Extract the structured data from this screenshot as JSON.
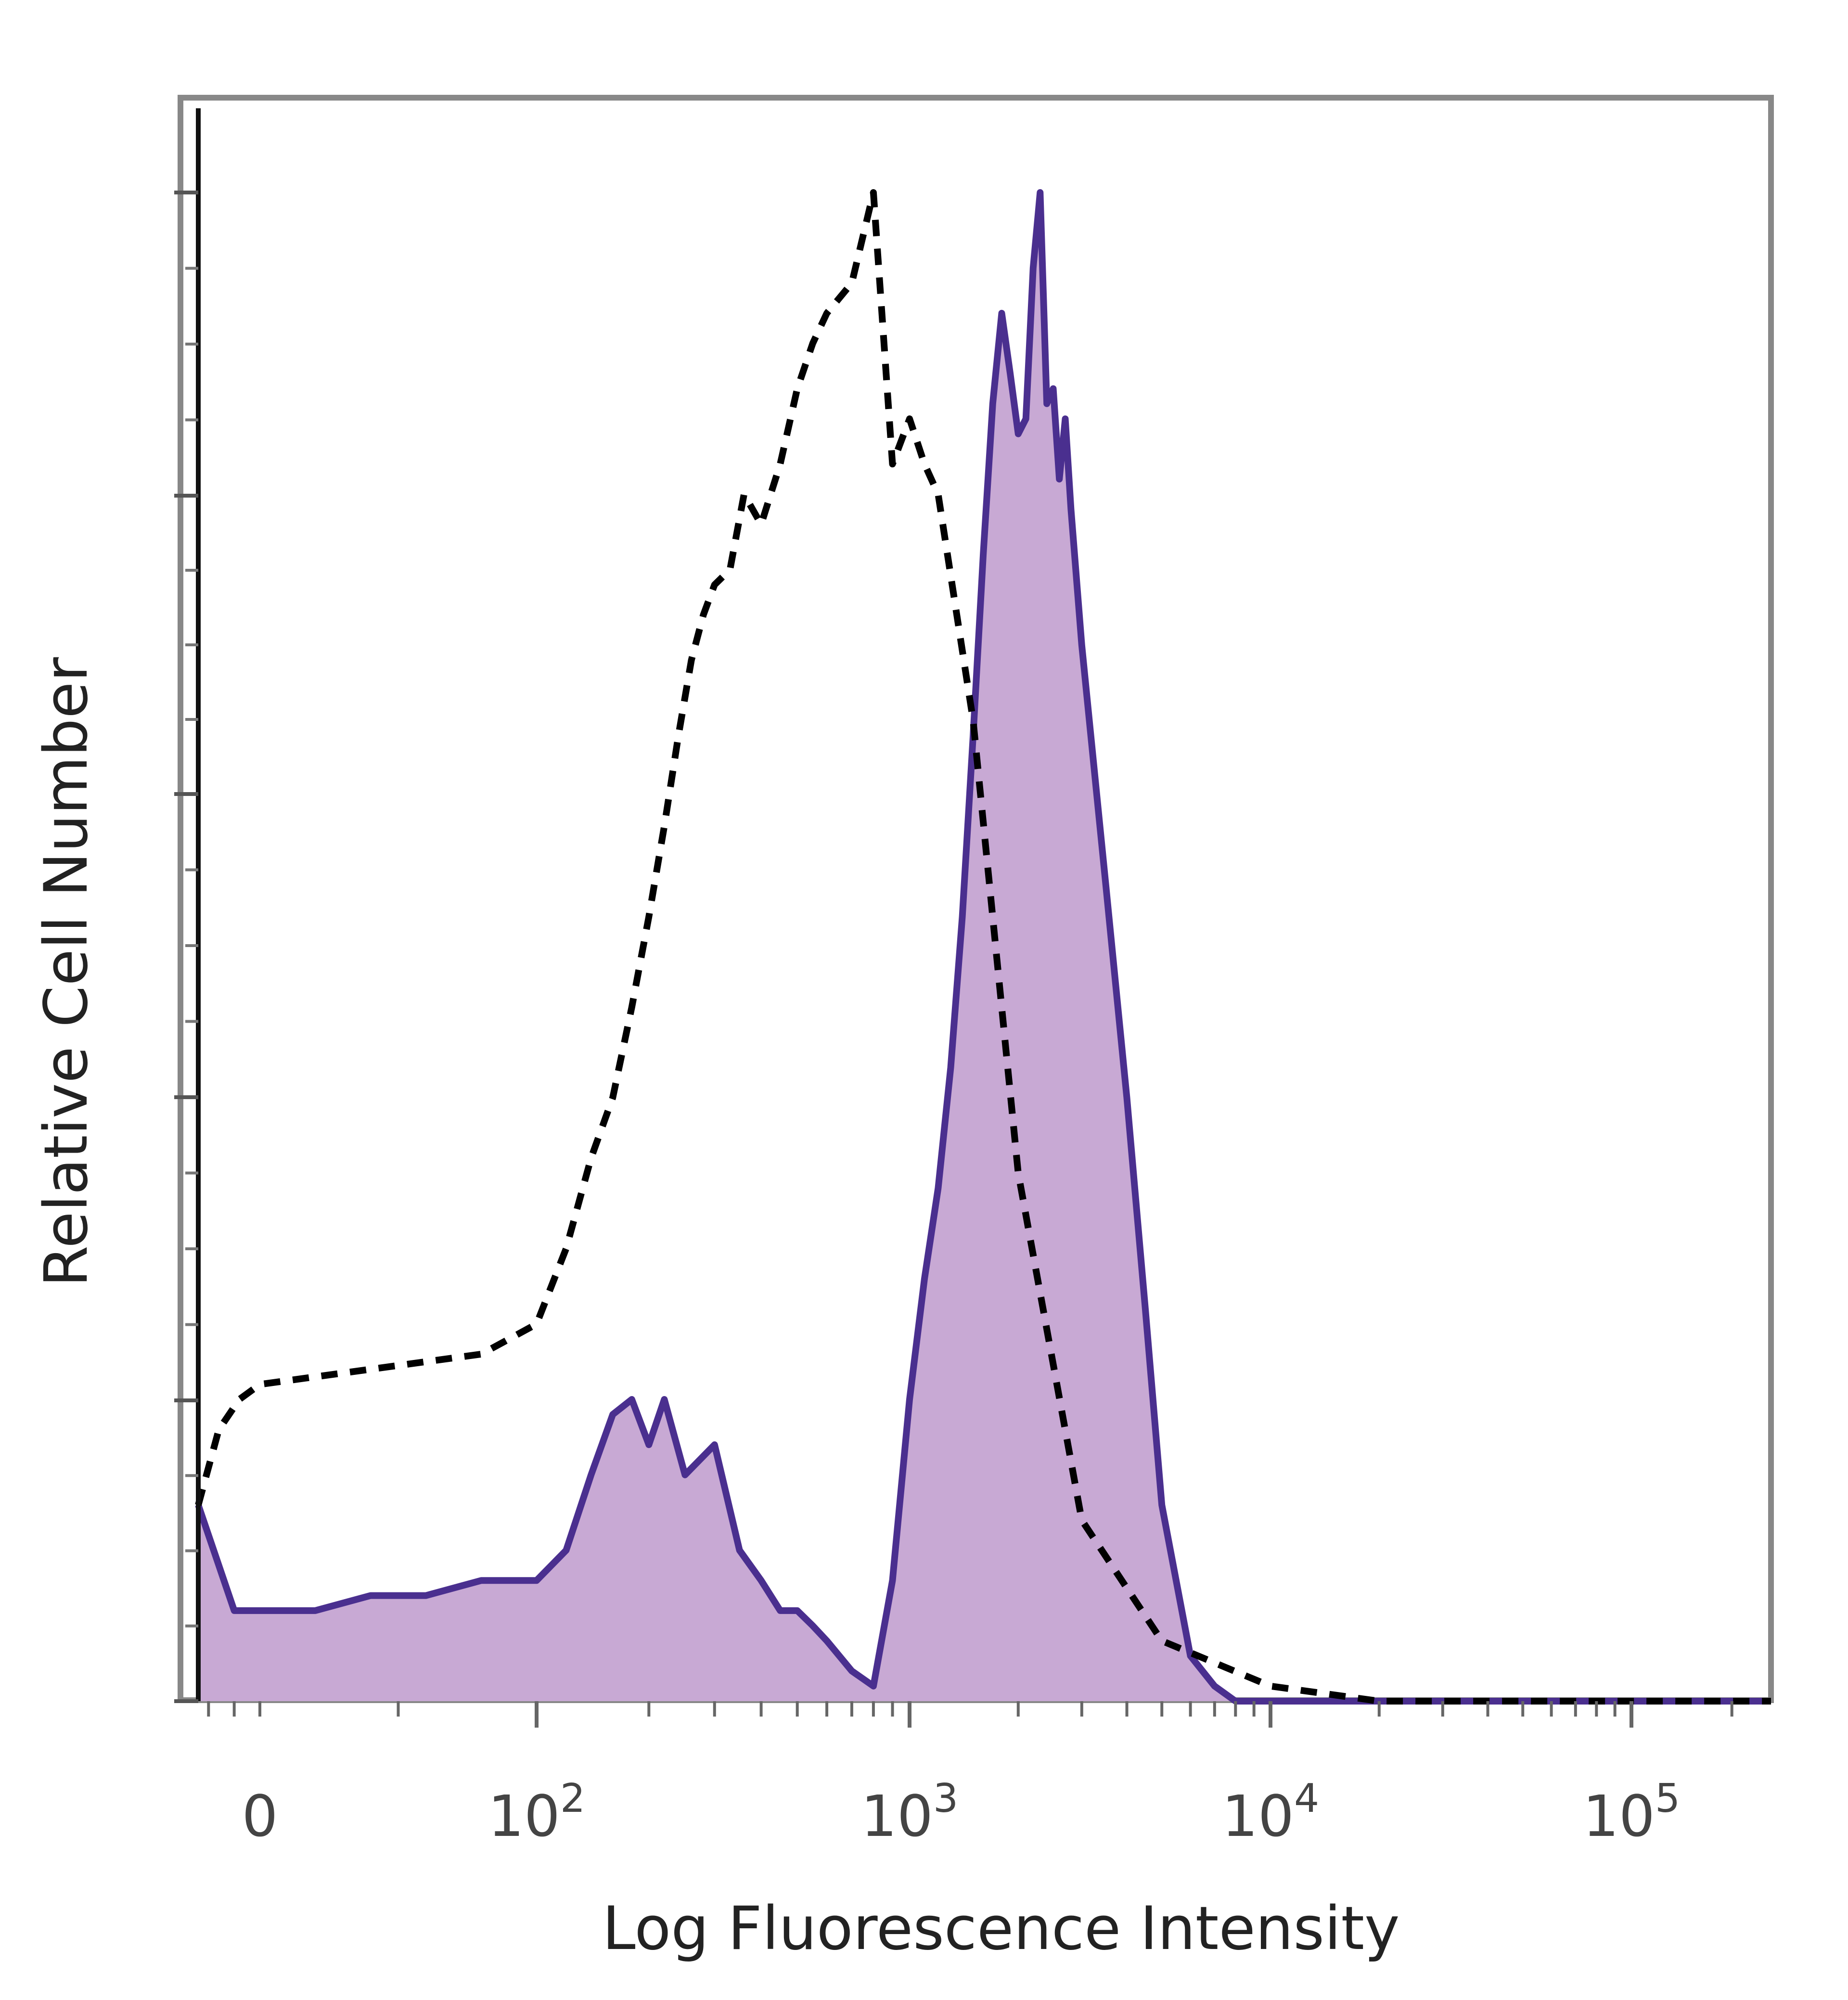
{
  "chart_data": {
    "type": "area",
    "title": "",
    "xlabel": "Log Fluorescence Intensity",
    "ylabel": "Relative Cell Number",
    "x_scale": "biexponential (log)",
    "x_tick_labels": [
      {
        "value": 0,
        "base": "0",
        "exp": ""
      },
      {
        "value": 100,
        "base": "10",
        "exp": "2"
      },
      {
        "value": 1000,
        "base": "10",
        "exp": "3"
      },
      {
        "value": 10000,
        "base": "10",
        "exp": "4"
      },
      {
        "value": 100000,
        "base": "10",
        "exp": "5"
      }
    ],
    "xlim": [
      -120,
      262000
    ],
    "ylim": [
      0,
      100
    ],
    "grid": false,
    "legend": "none",
    "colors": {
      "stained_line": "#4a2f8f",
      "stained_fill": "#c8a9d4",
      "control_line": "#000000",
      "frame": "#888888"
    },
    "series": [
      {
        "style": "filled solid",
        "x": [
          -120,
          -50,
          0,
          20,
          40,
          60,
          80,
          100,
          120,
          140,
          160,
          180,
          200,
          220,
          250,
          300,
          350,
          400,
          450,
          500,
          550,
          600,
          700,
          800,
          900,
          1000,
          1100,
          1200,
          1300,
          1400,
          1500,
          1600,
          1700,
          1800,
          1900,
          2000,
          2100,
          2200,
          2300,
          2400,
          2500,
          2600,
          2700,
          2800,
          3000,
          3500,
          4000,
          4500,
          5000,
          6000,
          7000,
          8000,
          9000,
          10000,
          12000,
          15000,
          20000,
          50000,
          100000,
          262000
        ],
        "y": [
          13,
          6,
          6,
          6,
          7,
          7,
          8,
          8,
          10,
          15,
          19,
          20,
          17,
          20,
          15,
          17,
          10,
          8,
          6,
          6,
          5,
          4,
          2,
          1,
          8,
          20,
          28,
          34,
          42,
          52,
          64,
          76,
          86,
          92,
          88,
          84,
          85,
          95,
          100,
          86,
          87,
          81,
          85,
          79,
          70,
          54,
          40,
          26,
          13,
          3,
          1,
          0,
          0,
          0,
          0,
          0,
          0,
          0,
          0,
          0
        ]
      },
      {
        "style": "dashed",
        "x": [
          -120,
          -80,
          -40,
          0,
          40,
          80,
          100,
          120,
          140,
          160,
          180,
          200,
          220,
          240,
          260,
          280,
          300,
          330,
          360,
          400,
          450,
          500,
          550,
          600,
          700,
          800,
          900,
          1000,
          1100,
          1200,
          1500,
          2000,
          3000,
          5000,
          10000,
          20000,
          50000,
          100000,
          262000
        ],
        "y": [
          13,
          18,
          20,
          21,
          22,
          23,
          25,
          30,
          36,
          40,
          46,
          52,
          58,
          64,
          69,
          72,
          74,
          75,
          80,
          78,
          82,
          87,
          90,
          92,
          94,
          100,
          82,
          85,
          82,
          80,
          65,
          35,
          12,
          4,
          1,
          0,
          0,
          0,
          0
        ]
      }
    ]
  }
}
